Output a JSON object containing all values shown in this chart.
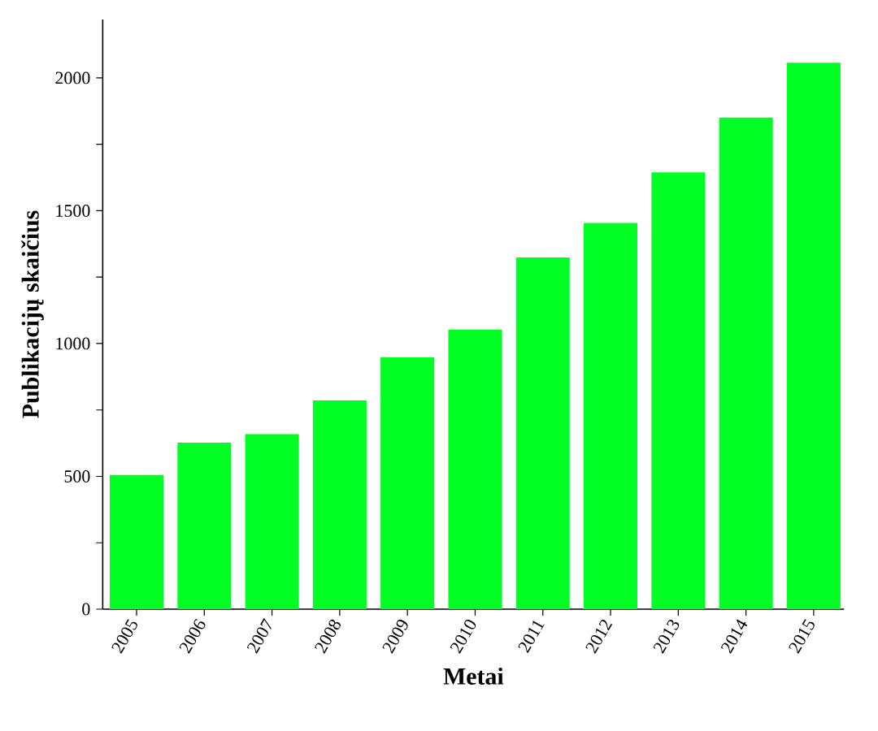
{
  "chart_data": {
    "type": "bar",
    "xlabel": "Metai",
    "ylabel": "Publikacijų skaičius",
    "categories": [
      "2005",
      "2006",
      "2007",
      "2008",
      "2009",
      "2010",
      "2011",
      "2012",
      "2013",
      "2014",
      "2015"
    ],
    "values": [
      505,
      627,
      659,
      786,
      948,
      1053,
      1324,
      1454,
      1644,
      1851,
      2057
    ],
    "color": "#00ff22",
    "ylim": [
      0,
      2220
    ],
    "yticks": [
      0,
      {
        "value": 250,
        "label": null
      },
      500,
      {
        "value": 750,
        "label": null
      },
      1000,
      {
        "value": 1250,
        "label": null
      },
      1500,
      {
        "value": 1750,
        "label": null
      },
      2000
    ],
    "grid": false
  }
}
